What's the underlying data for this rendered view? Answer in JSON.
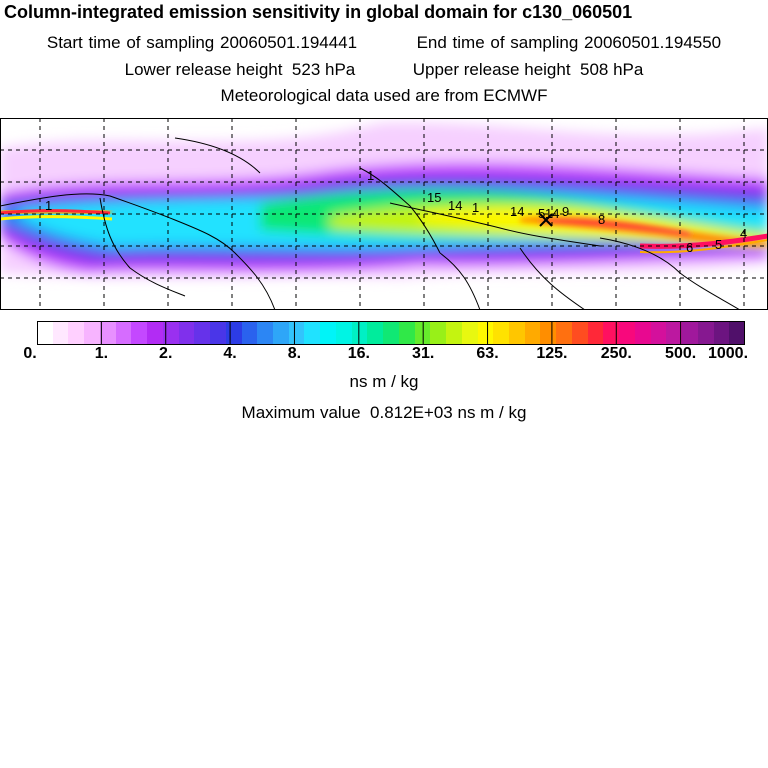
{
  "title": "Column-integrated emission sensitivity in global domain for c130_060501",
  "sampling": {
    "start_label": "Start time of sampling",
    "start_value": "20060501.194441",
    "end_label": "End time of sampling",
    "end_value": "20060501.194550"
  },
  "release": {
    "lower_label": "Lower release height",
    "lower_value": "523 hPa",
    "upper_label": "Upper release height",
    "upper_value": "508 hPa"
  },
  "met_source": "Meteorological data used are from ECMWF",
  "colorbar": {
    "tick_labels": [
      "0.",
      "1.",
      "2.",
      "4.",
      "8.",
      "16.",
      "31.",
      "63.",
      "125.",
      "250.",
      "500.",
      "1000."
    ],
    "colors": [
      "#ffffff",
      "#ffe8ff",
      "#ffd0ff",
      "#f7b4ff",
      "#e890ff",
      "#d66cff",
      "#c448ff",
      "#b22cf4",
      "#9a30f0",
      "#8030ec",
      "#6632ea",
      "#4a36e8",
      "#2c3ce6",
      "#2a62ee",
      "#2c86f4",
      "#2ea6f8",
      "#32c4fc",
      "#20e2ff",
      "#00f4f8",
      "#00f4e4",
      "#00f0c4",
      "#00ec9c",
      "#10e874",
      "#30e848",
      "#66ec2c",
      "#98f018",
      "#c4f410",
      "#e8f810",
      "#fff800",
      "#ffe200",
      "#ffc600",
      "#ffaa00",
      "#ff8e00",
      "#ff7010",
      "#ff4c20",
      "#ff2838",
      "#ff1060",
      "#f8087c",
      "#e80890",
      "#d4109c",
      "#bc18a0",
      "#a0189c",
      "#861890",
      "#6c1480",
      "#50106a"
    ],
    "unit": "ns m / kg",
    "max_label": "Maximum value",
    "max_value": "0.812E+03 ns m / kg"
  },
  "map_labels": [
    "1",
    "15",
    "14",
    "1",
    "14",
    "5",
    "14",
    "9",
    "8",
    "6",
    "5",
    "4",
    "1"
  ]
}
